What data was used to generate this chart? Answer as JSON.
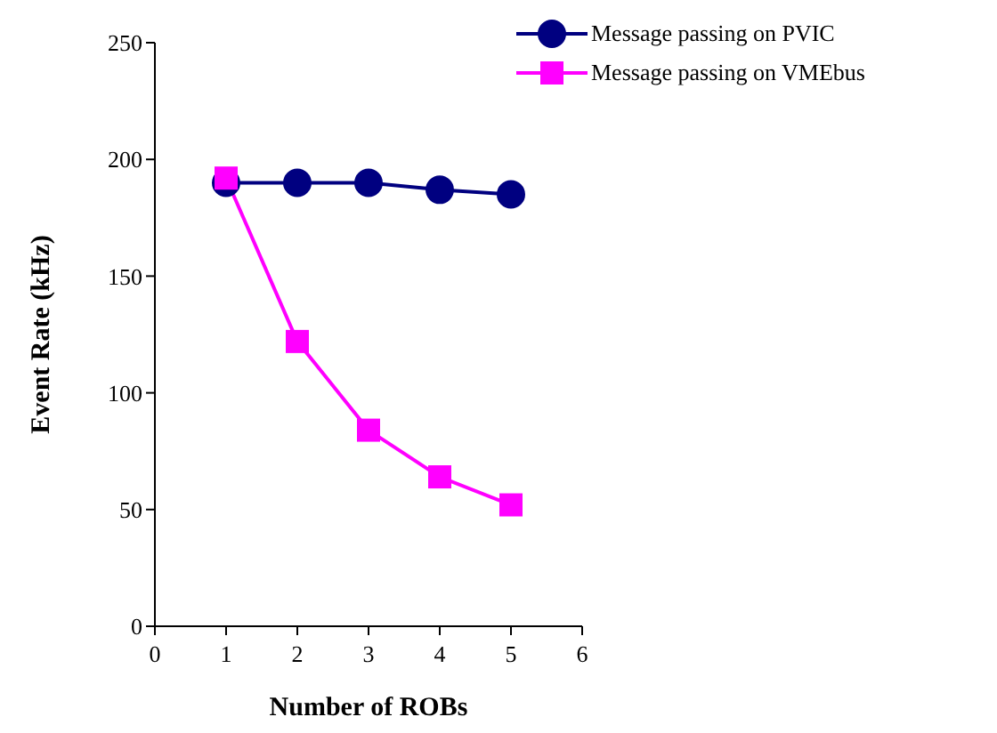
{
  "chart_data": {
    "type": "line",
    "xlabel": "Number of ROBs",
    "ylabel": "Event Rate (kHz)",
    "x": [
      1,
      2,
      3,
      4,
      5
    ],
    "xlim": [
      0,
      6
    ],
    "xticks": [
      0,
      1,
      2,
      3,
      4,
      5,
      6
    ],
    "ylim": [
      0,
      250
    ],
    "yticks": [
      0,
      50,
      100,
      150,
      200,
      250
    ],
    "grid": false,
    "legend": "top right",
    "line_style": "solid",
    "series": [
      {
        "name": "Message passing on PVIC",
        "color": "#000080",
        "marker": "circle",
        "values": [
          190,
          190,
          190,
          187,
          185
        ]
      },
      {
        "name": "Message passing on VMEbus",
        "color": "#ff00ff",
        "marker": "square",
        "values": [
          192,
          122,
          84,
          64,
          52
        ]
      }
    ]
  }
}
